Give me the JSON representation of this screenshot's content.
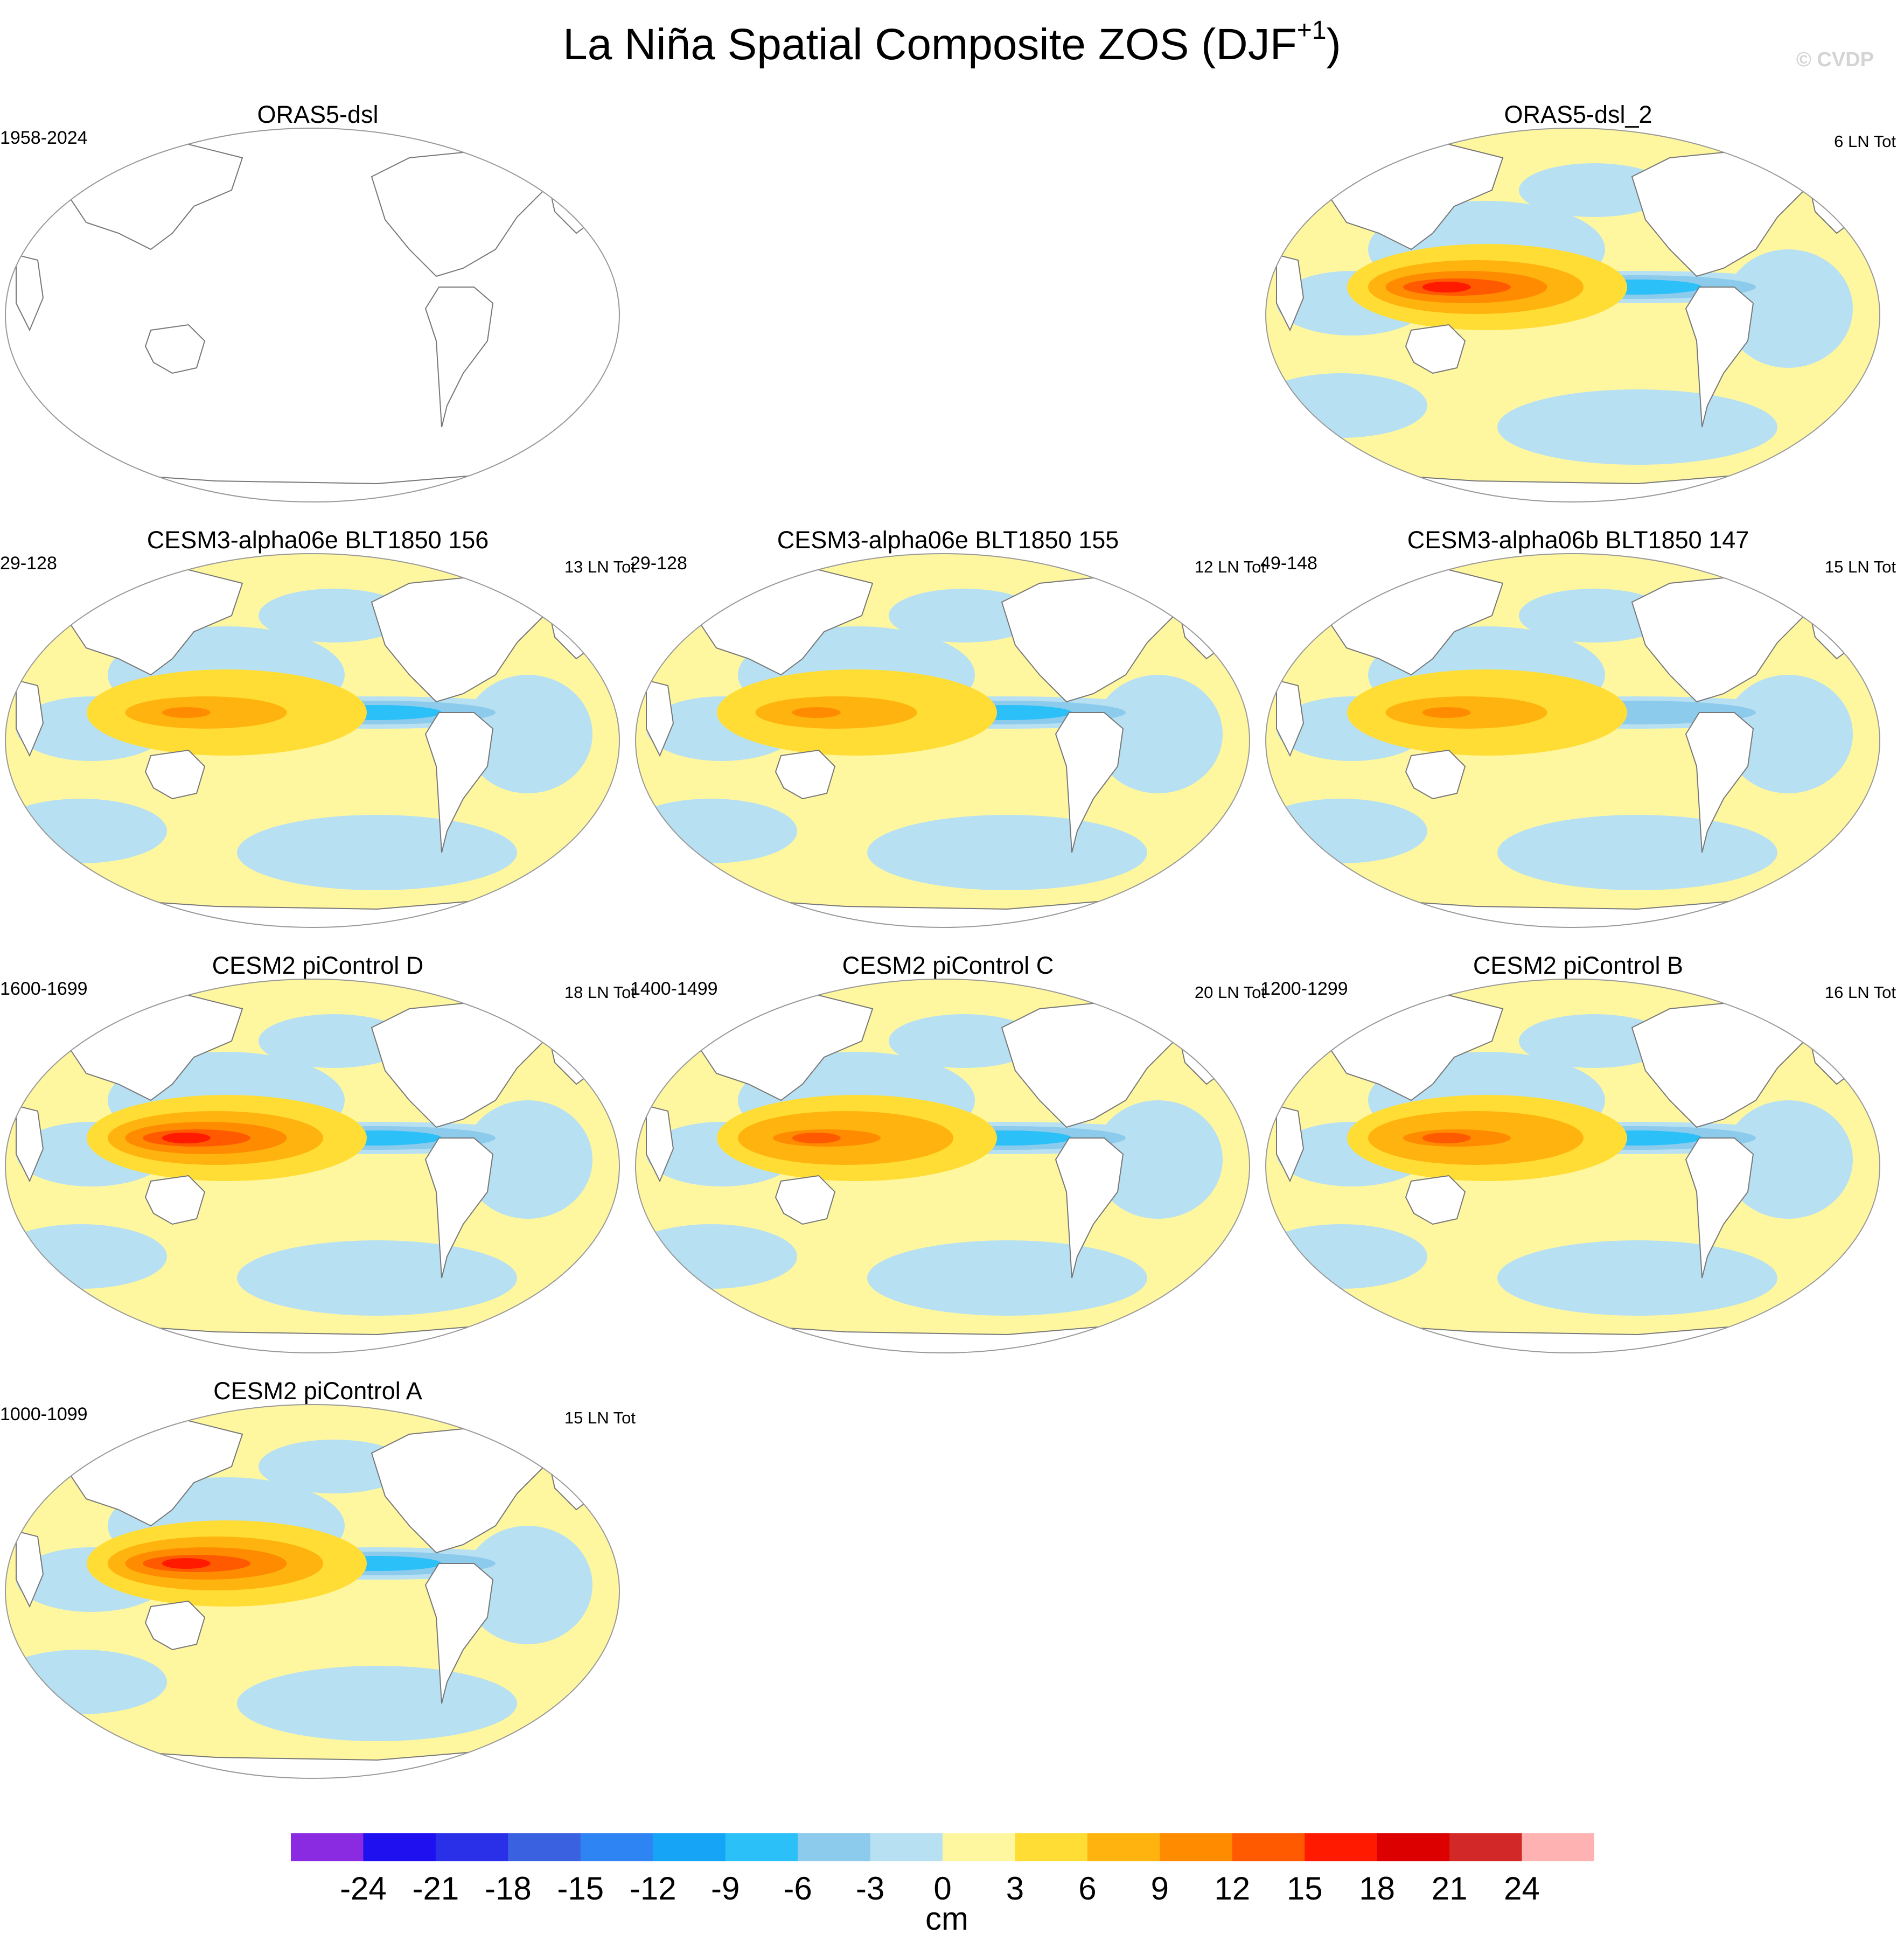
{
  "title_main": "La Niña Spatial Composite ZOS (DJF",
  "title_sup": "+1",
  "title_close": ")",
  "watermark": "© CVDP",
  "chart_data": {
    "type": "heatmap",
    "description_units": "cm",
    "colorbar": {
      "unit": "cm",
      "levels": [
        -24,
        -21,
        -18,
        -15,
        -12,
        -9,
        -6,
        -3,
        0,
        3,
        6,
        9,
        12,
        15,
        18,
        21,
        24
      ],
      "tick_labels": [
        "-24",
        "-21",
        "-18",
        "-15",
        "-12",
        "-9",
        "-6",
        "-3",
        "0",
        "3",
        "6",
        "9",
        "12",
        "15",
        "18",
        "21",
        "24"
      ],
      "colors": [
        "#8a2be2",
        "#1f10f0",
        "#2a30e8",
        "#3a62e0",
        "#2f84f4",
        "#16a5f6",
        "#2bc0f8",
        "#8ccbec",
        "#b7e0f2",
        "#fff7a0",
        "#ffdd35",
        "#ffb30e",
        "#ff8c00",
        "#ff5a00",
        "#ff1a00",
        "#dd0000",
        "#d32828",
        "#ffb2b2"
      ]
    },
    "panels": [
      {
        "id": "p0",
        "title": "ORAS5-dsl",
        "years": "1958-2024",
        "count": "",
        "has_data": false,
        "eq_max_cm": 0,
        "east_pacific_min_cm": 0
      },
      {
        "id": "p1",
        "title": "ORAS5-dsl_2",
        "years": "",
        "count": "6 LN Tot",
        "has_data": true,
        "eq_max_cm": 15,
        "east_pacific_min_cm": -9
      },
      {
        "id": "p2",
        "title": "CESM3-alpha06e BLT1850 156",
        "years": "29-128",
        "count": "13 LN Tot",
        "has_data": true,
        "eq_max_cm": 9,
        "east_pacific_min_cm": -9
      },
      {
        "id": "p3",
        "title": "CESM3-alpha06e BLT1850 155",
        "years": "29-128",
        "count": "12 LN Tot",
        "has_data": true,
        "eq_max_cm": 9,
        "east_pacific_min_cm": -9
      },
      {
        "id": "p4",
        "title": "CESM3-alpha06b BLT1850 147",
        "years": "49-148",
        "count": "15 LN Tot",
        "has_data": true,
        "eq_max_cm": 9,
        "east_pacific_min_cm": -6
      },
      {
        "id": "p5",
        "title": "CESM2 piControl D",
        "years": "1600-1699",
        "count": "18 LN Tot",
        "has_data": true,
        "eq_max_cm": 15,
        "east_pacific_min_cm": -9
      },
      {
        "id": "p6",
        "title": "CESM2 piControl C",
        "years": "1400-1499",
        "count": "20 LN Tot",
        "has_data": true,
        "eq_max_cm": 12,
        "east_pacific_min_cm": -9
      },
      {
        "id": "p7",
        "title": "CESM2 piControl B",
        "years": "1200-1299",
        "count": "16 LN Tot",
        "has_data": true,
        "eq_max_cm": 12,
        "east_pacific_min_cm": -9
      },
      {
        "id": "p8",
        "title": "CESM2 piControl A",
        "years": "1000-1099",
        "count": "15 LN Tot",
        "has_data": true,
        "eq_max_cm": 15,
        "east_pacific_min_cm": -9
      }
    ]
  }
}
